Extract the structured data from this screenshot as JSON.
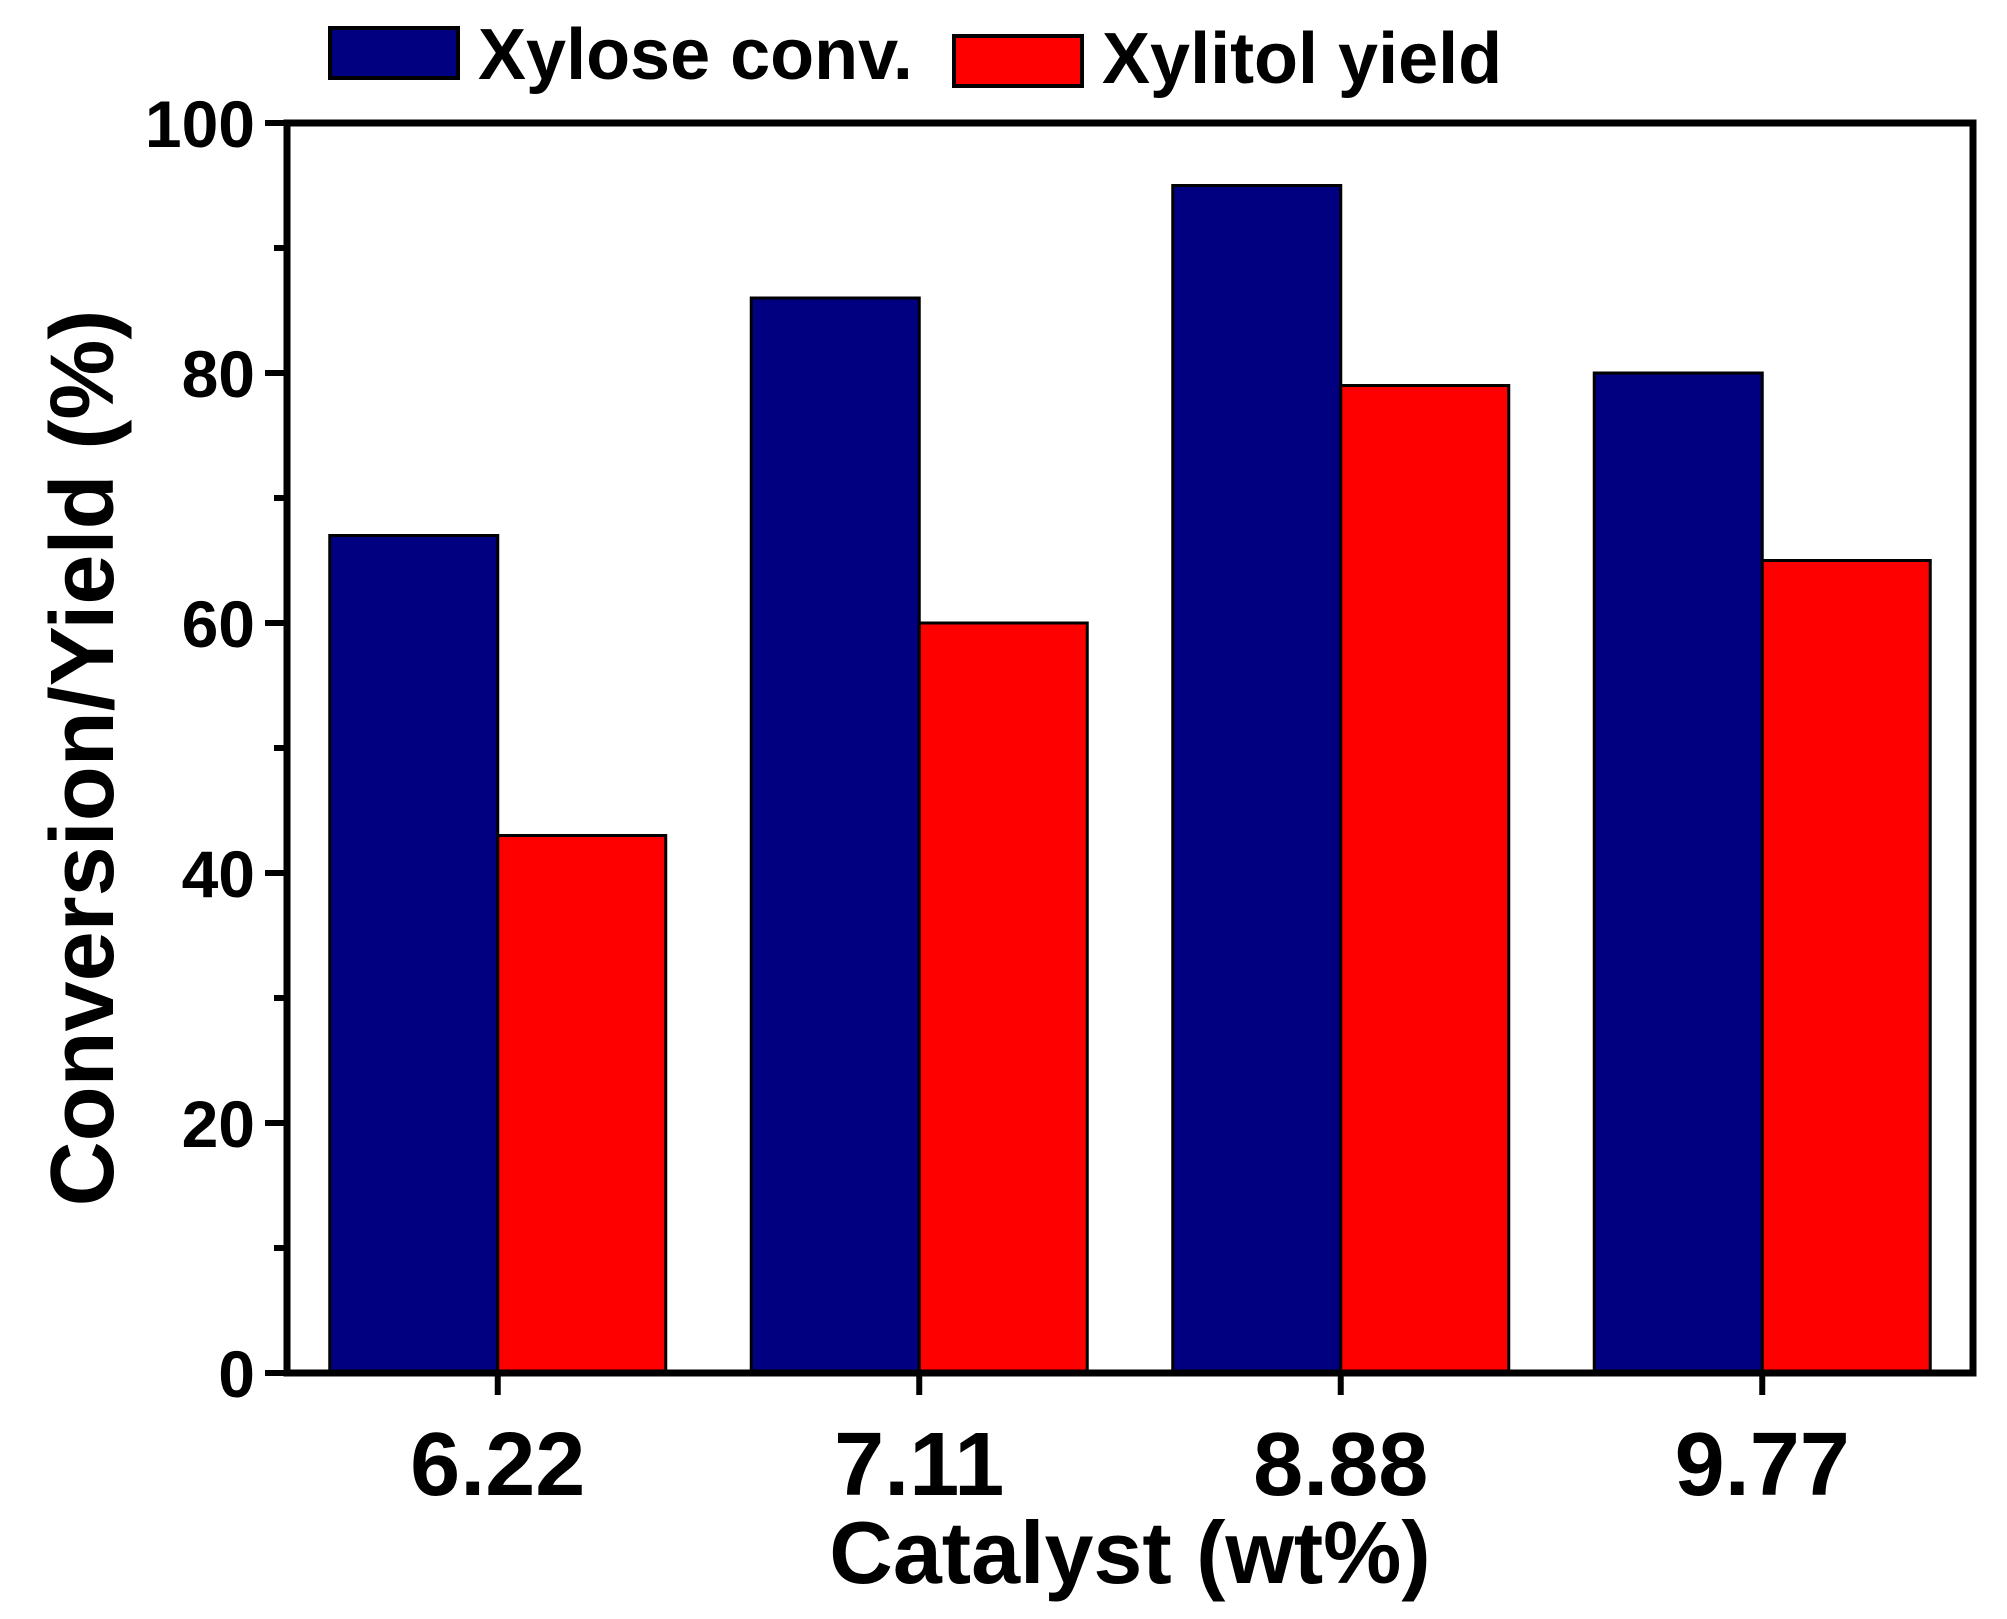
{
  "chart_data": {
    "type": "bar",
    "categories": [
      "6.22",
      "7.11",
      "8.88",
      "9.77"
    ],
    "series": [
      {
        "name": "Xylose conv.",
        "values": [
          67,
          86,
          95,
          80
        ],
        "color": "#000080"
      },
      {
        "name": "Xylitol yield",
        "values": [
          43,
          60,
          79,
          65
        ],
        "color": "#ff0000"
      }
    ],
    "title": "",
    "xlabel": "Catalyst (wt%)",
    "ylabel": "Conversion/Yield (%)",
    "ylim": [
      0,
      100
    ],
    "yticks": [
      0,
      20,
      40,
      60,
      80,
      100
    ],
    "yticks_minor": [
      10,
      30,
      50,
      70,
      90
    ],
    "grid": false,
    "legend_position": "top"
  }
}
